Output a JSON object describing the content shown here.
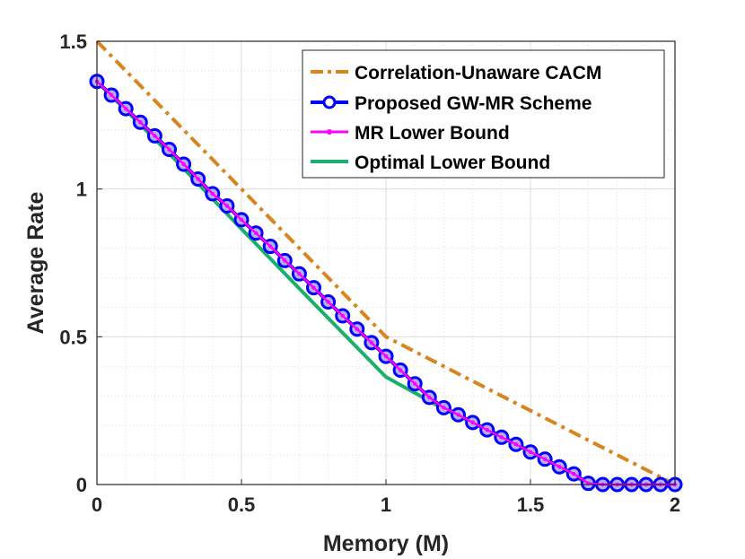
{
  "chart_data": {
    "type": "line",
    "xlabel": "Memory (M)",
    "ylabel": "Average Rate",
    "xlim": [
      0,
      2
    ],
    "ylim": [
      0,
      1.5
    ],
    "xticks": [
      0,
      0.5,
      1,
      1.5,
      2
    ],
    "yticks": [
      0,
      0.5,
      1,
      1.5
    ],
    "xtick_labels": [
      "0",
      "0.5",
      "1",
      "1.5",
      "2"
    ],
    "ytick_labels": [
      "0",
      "0.5",
      "1",
      "1.5"
    ],
    "grid": true,
    "minor_grid": true,
    "legend_position": "top-right",
    "series": [
      {
        "name": "Correlation-Unaware CACM",
        "color": "#D9841F",
        "style": "dash-dot",
        "x": [
          0,
          1,
          2
        ],
        "y": [
          1.5,
          0.5,
          0
        ]
      },
      {
        "name": "Proposed GW-MR Scheme",
        "color": "#0000FF",
        "style": "solid-circle-markers",
        "x": [
          0,
          0.05,
          0.1,
          0.15,
          0.2,
          0.25,
          0.3,
          0.35,
          0.4,
          0.45,
          0.5,
          0.55,
          0.6,
          0.65,
          0.7,
          0.75,
          0.8,
          0.85,
          0.9,
          0.95,
          1.0,
          1.05,
          1.1,
          1.15,
          1.2,
          1.25,
          1.3,
          1.35,
          1.4,
          1.45,
          1.5,
          1.55,
          1.6,
          1.65,
          1.7,
          1.75,
          1.8,
          1.85,
          1.9,
          1.95,
          2.0
        ],
        "y": [
          1.364,
          1.318,
          1.272,
          1.226,
          1.18,
          1.134,
          1.084,
          1.034,
          0.984,
          0.943,
          0.896,
          0.851,
          0.806,
          0.758,
          0.713,
          0.666,
          0.618,
          0.571,
          0.526,
          0.48,
          0.434,
          0.387,
          0.341,
          0.295,
          0.26,
          0.236,
          0.21,
          0.185,
          0.16,
          0.136,
          0.11,
          0.086,
          0.06,
          0.036,
          0.004,
          0.0,
          0.0,
          0.0,
          0.0,
          0.0,
          0.0
        ]
      },
      {
        "name": "MR Lower Bound",
        "color": "#FF00FF",
        "style": "solid-dot-markers",
        "x": [
          0,
          0.05,
          0.1,
          0.15,
          0.2,
          0.25,
          0.3,
          0.35,
          0.4,
          0.45,
          0.5,
          0.55,
          0.6,
          0.65,
          0.7,
          0.75,
          0.8,
          0.85,
          0.9,
          0.95,
          1.0,
          1.05,
          1.1,
          1.15,
          1.2,
          1.25,
          1.3,
          1.35,
          1.4,
          1.45,
          1.5,
          1.55,
          1.6,
          1.65,
          1.7,
          1.75,
          1.8,
          1.85,
          1.9,
          1.95,
          2.0
        ],
        "y": [
          1.364,
          1.318,
          1.272,
          1.226,
          1.18,
          1.134,
          1.084,
          1.034,
          0.984,
          0.943,
          0.896,
          0.851,
          0.806,
          0.758,
          0.713,
          0.666,
          0.618,
          0.571,
          0.526,
          0.48,
          0.434,
          0.387,
          0.341,
          0.295,
          0.26,
          0.236,
          0.21,
          0.185,
          0.16,
          0.136,
          0.11,
          0.086,
          0.06,
          0.036,
          0.004,
          0.0,
          0.0,
          0.0,
          0.0,
          0.0,
          0.0
        ]
      },
      {
        "name": "Optimal Lower Bound",
        "color": "#1AAF6C",
        "style": "solid",
        "x": [
          0,
          0.25,
          0.5,
          0.75,
          1.0,
          1.1,
          1.2,
          1.4,
          1.6,
          1.7,
          2.0
        ],
        "y": [
          1.364,
          1.12,
          0.865,
          0.613,
          0.364,
          0.31,
          0.255,
          0.165,
          0.06,
          0.0,
          0.0
        ]
      }
    ]
  }
}
